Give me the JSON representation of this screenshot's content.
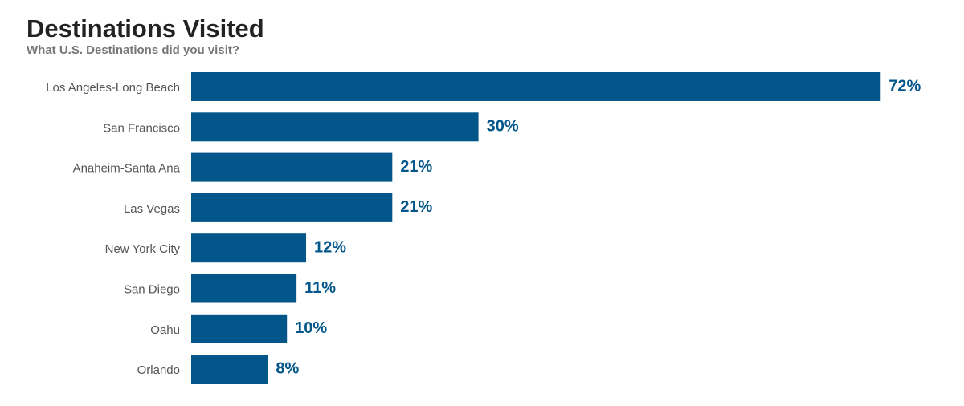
{
  "chart_data": {
    "type": "hbar",
    "title": "Destinations Visited",
    "subtitle": "What U.S. Destinations did you visit?",
    "categories": [
      "Los Angeles-Long Beach",
      "San Francisco",
      "Anaheim-Santa Ana",
      "Las Vegas",
      "New York City",
      "San Diego",
      "Oahu",
      "Orlando"
    ],
    "values": [
      72,
      30,
      21,
      21,
      12,
      11,
      10,
      8
    ],
    "value_labels": [
      "72%",
      "30%",
      "21%",
      "21%",
      "12%",
      "11%",
      "10%",
      "8%"
    ],
    "color": "#03568a"
  }
}
